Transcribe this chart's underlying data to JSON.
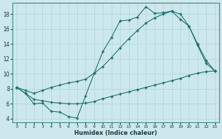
{
  "xlabel": "Humidex (Indice chaleur)",
  "bg_color": "#cde8ec",
  "grid_color": "#b0d8de",
  "line_color": "#1a6e6a",
  "xlim": [
    -0.5,
    23.5
  ],
  "ylim": [
    3.5,
    19.5
  ],
  "xticks": [
    0,
    1,
    2,
    3,
    4,
    5,
    6,
    7,
    8,
    9,
    10,
    11,
    12,
    13,
    14,
    15,
    16,
    17,
    18,
    19,
    20,
    21,
    22,
    23
  ],
  "yticks": [
    4,
    6,
    8,
    10,
    12,
    14,
    16,
    18
  ],
  "series1_x": [
    0,
    1,
    2,
    3,
    4,
    5,
    6,
    7,
    8,
    9,
    10,
    11,
    12,
    13,
    14,
    15,
    16,
    17,
    18,
    19,
    20,
    21,
    22,
    23
  ],
  "series1_y": [
    8.2,
    7.4,
    6.0,
    6.1,
    5.0,
    4.9,
    4.3,
    4.1,
    7.1,
    10.1,
    13.0,
    14.9,
    17.1,
    17.2,
    17.6,
    19.0,
    18.1,
    18.2,
    18.4,
    17.3,
    16.4,
    13.8,
    11.4,
    10.4
  ],
  "series2_x": [
    0,
    1,
    2,
    3,
    4,
    5,
    6,
    7,
    8,
    9,
    10,
    11,
    12,
    13,
    14,
    15,
    16,
    17,
    18,
    19,
    20,
    21,
    22,
    23
  ],
  "series2_y": [
    8.2,
    7.8,
    7.4,
    7.8,
    8.2,
    8.5,
    8.8,
    9.0,
    9.3,
    10.1,
    11.0,
    12.2,
    13.5,
    14.7,
    15.8,
    16.8,
    17.5,
    18.0,
    18.4,
    18.0,
    16.4,
    14.0,
    11.8,
    10.4
  ],
  "series3_x": [
    0,
    1,
    2,
    3,
    4,
    5,
    6,
    7,
    8,
    9,
    10,
    11,
    12,
    13,
    14,
    15,
    16,
    17,
    18,
    19,
    20,
    21,
    22,
    23
  ],
  "series3_y": [
    8.2,
    7.4,
    6.6,
    6.4,
    6.2,
    6.1,
    6.0,
    6.0,
    6.1,
    6.3,
    6.7,
    7.0,
    7.3,
    7.6,
    7.9,
    8.2,
    8.5,
    8.8,
    9.1,
    9.4,
    9.8,
    10.1,
    10.3,
    10.4
  ]
}
